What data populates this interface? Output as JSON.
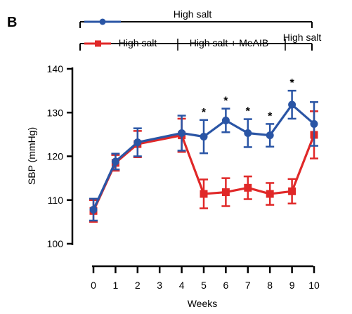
{
  "chart_data": {
    "type": "line",
    "panel_label": "B",
    "ylabel": "SBP (mmHg)",
    "xlabel": "Weeks",
    "ylim": [
      100,
      140
    ],
    "yticks": [
      100,
      110,
      120,
      130,
      140
    ],
    "xlim": [
      0,
      10
    ],
    "xticks": [
      0,
      1,
      2,
      3,
      4,
      5,
      6,
      7,
      8,
      9,
      10
    ],
    "grid": false,
    "series": [
      {
        "color": "#2a55a5",
        "marker": "circle",
        "x": [
          0,
          1,
          2,
          4,
          5,
          6,
          7,
          8,
          9,
          10
        ],
        "y": [
          107.8,
          118.8,
          123.2,
          125.3,
          124.5,
          128.2,
          125.3,
          124.8,
          131.8,
          127.4
        ],
        "err": [
          2.5,
          1.8,
          3.2,
          4.0,
          3.8,
          2.7,
          3.2,
          2.6,
          3.2,
          5.0
        ]
      },
      {
        "color": "#e02828",
        "marker": "square",
        "x": [
          0,
          1,
          2,
          4,
          5,
          6,
          7,
          8,
          9,
          10
        ],
        "y": [
          107.5,
          118.5,
          122.8,
          124.8,
          111.4,
          111.8,
          112.8,
          111.4,
          112.0,
          124.9
        ],
        "err": [
          2.5,
          1.8,
          3.0,
          3.8,
          3.3,
          3.2,
          2.6,
          2.5,
          2.8,
          5.4
        ]
      }
    ],
    "significance": {
      "marker": "*",
      "weeks": [
        5,
        6,
        7,
        8,
        9
      ]
    },
    "legend": {
      "placement": "top",
      "blue_label": "High salt",
      "red_segments": [
        {
          "label": "High salt",
          "from": 0,
          "to": 4
        },
        {
          "label": "High salt + MeAIB",
          "from": 4,
          "to": 9
        },
        {
          "label": "High salt",
          "from": 9,
          "to": 10
        }
      ]
    }
  }
}
